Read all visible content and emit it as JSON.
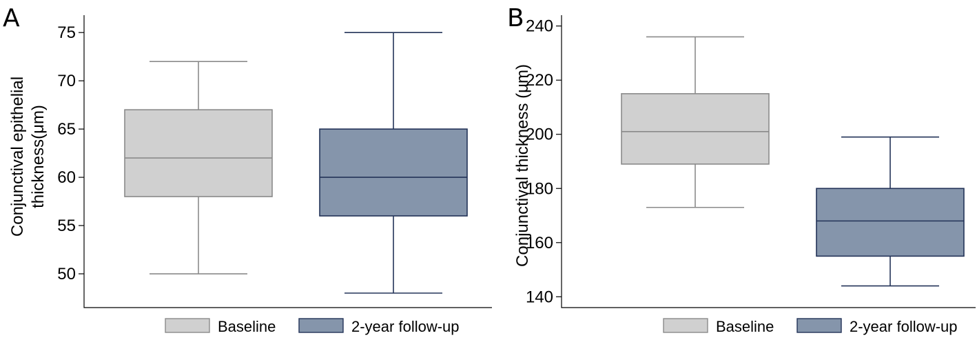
{
  "legend": {
    "items": [
      {
        "label": "Baseline",
        "fill": "#d0d0d0",
        "stroke": "#8a8a8a"
      },
      {
        "label": "2-year follow-up",
        "fill": "#8595ab",
        "stroke": "#233358"
      }
    ]
  },
  "chart_data": [
    {
      "type": "box",
      "panel": "A",
      "title": "",
      "ylabel_lines": [
        "Conjunctival epithelial",
        "thickness(μm)"
      ],
      "ylim": [
        46.5,
        76.8
      ],
      "yticks": [
        50,
        55,
        60,
        65,
        70,
        75
      ],
      "grid": false,
      "legend_position": "bottom",
      "series": [
        {
          "name": "Baseline",
          "min": 50,
          "q1": 58,
          "median": 62,
          "q3": 67,
          "max": 72,
          "fill": "#d0d0d0",
          "stroke": "#8a8a8a"
        },
        {
          "name": "2-year follow-up",
          "min": 48,
          "q1": 56,
          "median": 60,
          "q3": 65,
          "max": 75,
          "fill": "#8595ab",
          "stroke": "#233358"
        }
      ]
    },
    {
      "type": "box",
      "panel": "B",
      "title": "",
      "ylabel_lines": [
        "Conjunctival thickness (μm)"
      ],
      "ylim": [
        136,
        244
      ],
      "yticks": [
        140,
        160,
        180,
        200,
        220,
        240
      ],
      "grid": false,
      "legend_position": "bottom",
      "series": [
        {
          "name": "Baseline",
          "min": 173,
          "q1": 189,
          "median": 201,
          "q3": 215,
          "max": 236,
          "fill": "#d0d0d0",
          "stroke": "#8a8a8a"
        },
        {
          "name": "2-year follow-up",
          "min": 144,
          "q1": 155,
          "median": 168,
          "q3": 180,
          "max": 199,
          "fill": "#8595ab",
          "stroke": "#233358"
        }
      ]
    }
  ]
}
